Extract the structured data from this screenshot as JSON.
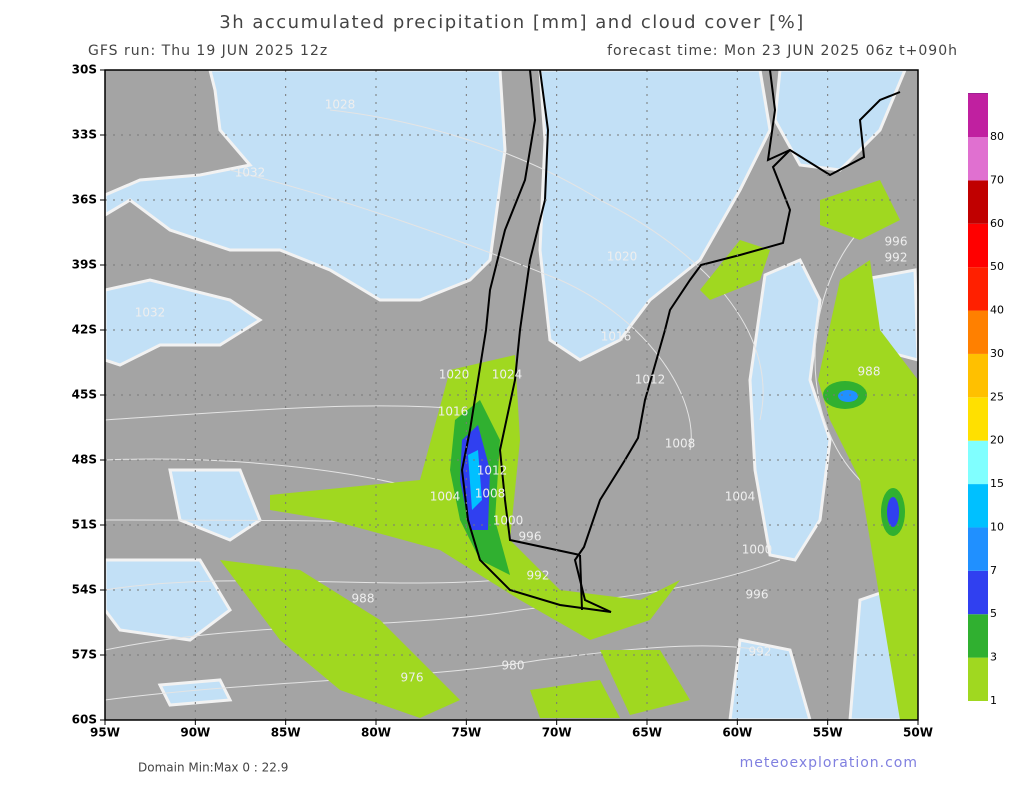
{
  "header": {
    "title": "3h accumulated precipitation [mm] and cloud cover [%]",
    "run": "GFS run: Thu 19 JUN 2025 12z",
    "forecast_time": "forecast time: Mon 23 JUN 2025 06z  t+090h"
  },
  "map": {
    "lat_labels": [
      "30S",
      "33S",
      "36S",
      "39S",
      "42S",
      "45S",
      "48S",
      "51S",
      "54S",
      "57S",
      "60S"
    ],
    "lon_labels": [
      "95W",
      "90W",
      "85W",
      "80W",
      "75W",
      "70W",
      "65W",
      "60W",
      "55W",
      "50W"
    ],
    "isobar_labels": [
      "1028",
      "1032",
      "1032",
      "1020",
      "1016",
      "1012",
      "1008",
      "1004",
      "1000",
      "996",
      "992",
      "996",
      "992",
      "988",
      "1020",
      "1024",
      "1016",
      "1012",
      "1008",
      "1004",
      "1000",
      "996",
      "992",
      "988",
      "980",
      "976"
    ]
  },
  "legend": {
    "levels": [
      1,
      3,
      5,
      7,
      10,
      15,
      20,
      25,
      30,
      40,
      50,
      60,
      70,
      80
    ],
    "colors": [
      "#a0d820",
      "#30b030",
      "#3040f0",
      "#2090ff",
      "#00c0ff",
      "#80ffff",
      "#ffe000",
      "#ffc000",
      "#ff8000",
      "#ff2000",
      "#ff0000",
      "#c00000",
      "#e070d0",
      "#c020a0",
      "#800080"
    ]
  },
  "footer": {
    "domain_minmax": "Domain Min:Max 0 : 22.9",
    "credit": "meteoexploration.com"
  }
}
